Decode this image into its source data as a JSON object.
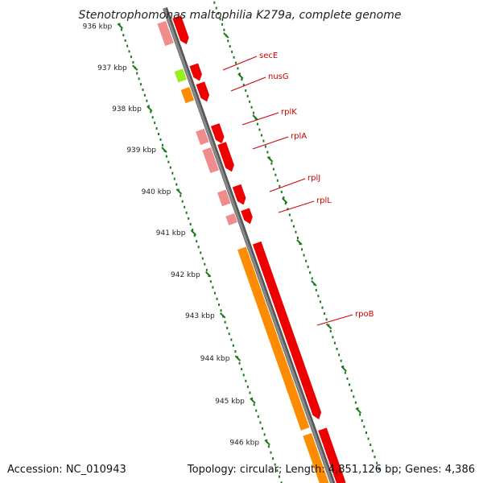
{
  "title": "Stenotrophomonas maltophilia K279a, complete genome",
  "footer": {
    "accession": "Accession: NC_010943",
    "topology": "Topology: circular; Length: 4,851,126 bp; Genes: 4,386"
  },
  "colors": {
    "backbone": "#888888",
    "tick": "#1a7a1a",
    "label": "#cc0000",
    "strand_dark": "#ee0000",
    "strand_light": "#f08c8c",
    "orange": "#ff8c00",
    "green": "#99ee22"
  },
  "axis": {
    "unit": "kbp",
    "labels": [
      "936 kbp",
      "937 kbp",
      "938 kbp",
      "939 kbp",
      "940 kbp",
      "941 kbp",
      "942 kbp",
      "943 kbp",
      "944 kbp",
      "945 kbp",
      "946 kbp"
    ]
  },
  "genes": [
    {
      "name": "secE",
      "color": "pink"
    },
    {
      "name": "nusG",
      "color": "orange"
    },
    {
      "name": "rplK",
      "color": "pink"
    },
    {
      "name": "rplA",
      "color": "pink"
    },
    {
      "name": "rplJ",
      "color": "pink"
    },
    {
      "name": "rplL",
      "color": "pink"
    },
    {
      "name": "rpoB",
      "color": "orange"
    }
  ]
}
